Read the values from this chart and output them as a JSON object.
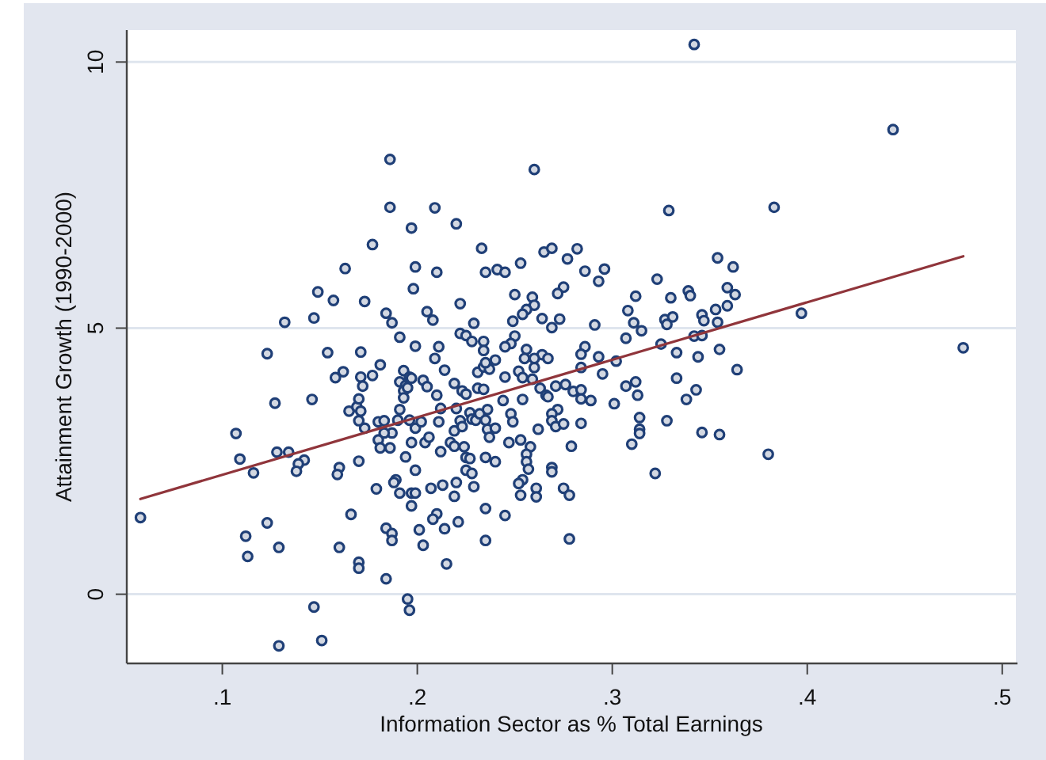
{
  "chart_data": {
    "type": "scatter",
    "xlabel": "Information Sector as % Total Earnings",
    "ylabel": "Attainment Growth (1990-2000)",
    "xlim": [
      0.051,
      0.507
    ],
    "ylim": [
      -1.3,
      10.6
    ],
    "xticks": [
      {
        "value": 0.1,
        "label": ".1"
      },
      {
        "value": 0.2,
        "label": ".2"
      },
      {
        "value": 0.3,
        "label": ".3"
      },
      {
        "value": 0.4,
        "label": ".4"
      },
      {
        "value": 0.5,
        "label": ".5"
      }
    ],
    "yticks": [
      0,
      5,
      10
    ],
    "grid": "y",
    "series": [
      {
        "color": "#1f3f77",
        "marker": "circle",
        "x": [
          0.163,
          0.149,
          0.157,
          0.132,
          0.147,
          0.123,
          0.154,
          0.162,
          0.158,
          0.127,
          0.146,
          0.165,
          0.107,
          0.109,
          0.116,
          0.128,
          0.134,
          0.142,
          0.139,
          0.138,
          0.16,
          0.159,
          0.058,
          0.123,
          0.112,
          0.113,
          0.129,
          0.166,
          0.16,
          0.147,
          0.151,
          0.129,
          0.186,
          0.26,
          0.186,
          0.209,
          0.197,
          0.22,
          0.177,
          0.233,
          0.265,
          0.199,
          0.21,
          0.235,
          0.241,
          0.245,
          0.253,
          0.198,
          0.173,
          0.222,
          0.25,
          0.259,
          0.26,
          0.256,
          0.254,
          0.184,
          0.187,
          0.205,
          0.208,
          0.229,
          0.249,
          0.264,
          0.191,
          0.199,
          0.211,
          0.222,
          0.225,
          0.228,
          0.234,
          0.234,
          0.25,
          0.248,
          0.245,
          0.256,
          0.171,
          0.209,
          0.214,
          0.171,
          0.172,
          0.181,
          0.177,
          0.193,
          0.196,
          0.191,
          0.194,
          0.193,
          0.193,
          0.195,
          0.197,
          0.203,
          0.205,
          0.219,
          0.223,
          0.225,
          0.231,
          0.234,
          0.231,
          0.234,
          0.237,
          0.235,
          0.24,
          0.245,
          0.252,
          0.254,
          0.26,
          0.259,
          0.254,
          0.244,
          0.263,
          0.266,
          0.169,
          0.17,
          0.171,
          0.17,
          0.173,
          0.18,
          0.183,
          0.187,
          0.183,
          0.18,
          0.181,
          0.186,
          0.19,
          0.191,
          0.196,
          0.199,
          0.202,
          0.197,
          0.194,
          0.204,
          0.206,
          0.211,
          0.212,
          0.21,
          0.212,
          0.217,
          0.219,
          0.22,
          0.222,
          0.223,
          0.219,
          0.224,
          0.225,
          0.227,
          0.225,
          0.228,
          0.229,
          0.227,
          0.228,
          0.23,
          0.232,
          0.236,
          0.235,
          0.236,
          0.237,
          0.24,
          0.248,
          0.249,
          0.247,
          0.253,
          0.258,
          0.256,
          0.256,
          0.257,
          0.254,
          0.252,
          0.253,
          0.261,
          0.261,
          0.262,
          0.235,
          0.24,
          0.199,
          0.189,
          0.188,
          0.191,
          0.197,
          0.199,
          0.197,
          0.179,
          0.207,
          0.213,
          0.22,
          0.219,
          0.221,
          0.21,
          0.208,
          0.214,
          0.201,
          0.203,
          0.235,
          0.235,
          0.245,
          0.184,
          0.187,
          0.187,
          0.17,
          0.17,
          0.184,
          0.215,
          0.195,
          0.196,
          0.17,
          0.255,
          0.264,
          0.329,
          0.269,
          0.282,
          0.277,
          0.286,
          0.296,
          0.293,
          0.323,
          0.354,
          0.362,
          0.275,
          0.272,
          0.312,
          0.33,
          0.339,
          0.34,
          0.359,
          0.363,
          0.273,
          0.269,
          0.308,
          0.311,
          0.315,
          0.291,
          0.327,
          0.331,
          0.328,
          0.346,
          0.347,
          0.353,
          0.354,
          0.359,
          0.342,
          0.346,
          0.325,
          0.307,
          0.286,
          0.284,
          0.284,
          0.293,
          0.295,
          0.302,
          0.333,
          0.344,
          0.355,
          0.364,
          0.267,
          0.26,
          0.267,
          0.271,
          0.276,
          0.28,
          0.284,
          0.284,
          0.289,
          0.301,
          0.307,
          0.312,
          0.313,
          0.333,
          0.343,
          0.338,
          0.272,
          0.269,
          0.269,
          0.271,
          0.275,
          0.284,
          0.279,
          0.269,
          0.269,
          0.275,
          0.278,
          0.278,
          0.314,
          0.314,
          0.314,
          0.31,
          0.328,
          0.346,
          0.355,
          0.322,
          0.444,
          0.383,
          0.397,
          0.38,
          0.48,
          0.342
        ],
        "values": [
          6.12,
          5.68,
          5.52,
          5.11,
          5.19,
          4.52,
          4.54,
          4.18,
          4.07,
          3.59,
          3.66,
          3.44,
          3.02,
          2.54,
          2.28,
          2.67,
          2.67,
          2.52,
          2.45,
          2.31,
          2.38,
          2.25,
          1.44,
          1.34,
          1.09,
          0.71,
          0.88,
          1.5,
          0.88,
          -0.24,
          -0.87,
          -0.97,
          8.17,
          7.98,
          7.27,
          7.26,
          6.88,
          6.96,
          6.57,
          6.5,
          6.43,
          6.15,
          6.05,
          6.05,
          6.1,
          6.05,
          6.22,
          5.74,
          5.5,
          5.46,
          5.63,
          5.58,
          5.43,
          5.35,
          5.26,
          5.28,
          5.1,
          5.31,
          5.15,
          5.09,
          5.13,
          5.18,
          4.83,
          4.66,
          4.65,
          4.9,
          4.86,
          4.75,
          4.75,
          4.58,
          4.85,
          4.71,
          4.65,
          4.6,
          4.55,
          4.43,
          4.21,
          4.08,
          3.91,
          4.31,
          4.11,
          4.2,
          4.08,
          3.99,
          3.92,
          3.82,
          3.69,
          3.88,
          4.06,
          4.02,
          3.9,
          3.96,
          3.82,
          3.76,
          3.87,
          3.85,
          4.17,
          4.27,
          4.23,
          4.35,
          4.4,
          4.08,
          4.19,
          4.07,
          4.26,
          4.04,
          3.66,
          3.64,
          3.87,
          3.74,
          3.52,
          3.67,
          3.44,
          3.26,
          3.12,
          3.24,
          3.26,
          3.03,
          3.03,
          2.9,
          2.75,
          2.75,
          3.27,
          3.47,
          3.27,
          3.12,
          3.24,
          2.85,
          2.58,
          2.85,
          2.95,
          3.24,
          3.49,
          3.74,
          2.68,
          2.85,
          3.07,
          3.49,
          3.26,
          3.15,
          2.78,
          2.77,
          2.57,
          2.55,
          2.33,
          2.27,
          2.02,
          3.41,
          3.29,
          3.27,
          3.39,
          3.47,
          3.27,
          3.1,
          2.95,
          3.12,
          3.39,
          3.24,
          2.85,
          2.9,
          2.77,
          2.63,
          2.49,
          2.35,
          2.15,
          2.08,
          1.86,
          1.99,
          1.83,
          3.1,
          2.57,
          2.49,
          2.33,
          2.15,
          2.1,
          1.9,
          1.9,
          1.9,
          1.66,
          1.98,
          1.99,
          2.05,
          2.1,
          1.84,
          1.36,
          1.51,
          1.41,
          1.23,
          1.21,
          0.92,
          1.61,
          1.01,
          1.48,
          1.24,
          1.14,
          1.01,
          0.6,
          0.49,
          0.29,
          0.57,
          -0.09,
          -0.3,
          2.5,
          4.43,
          4.5,
          7.21,
          6.5,
          6.49,
          6.3,
          6.07,
          6.11,
          5.88,
          5.92,
          6.32,
          6.15,
          5.77,
          5.65,
          5.6,
          5.57,
          5.7,
          5.61,
          5.76,
          5.63,
          5.17,
          5.01,
          5.33,
          5.1,
          4.95,
          5.06,
          5.16,
          5.21,
          5.07,
          5.25,
          5.14,
          5.35,
          5.11,
          5.42,
          4.85,
          4.86,
          4.7,
          4.81,
          4.65,
          4.51,
          4.26,
          4.46,
          4.14,
          4.38,
          4.54,
          4.46,
          4.6,
          4.22,
          4.43,
          4.43,
          3.71,
          3.91,
          3.94,
          3.81,
          3.84,
          3.67,
          3.64,
          3.58,
          3.91,
          3.99,
          3.74,
          4.06,
          3.84,
          3.66,
          3.47,
          3.39,
          3.26,
          3.15,
          3.2,
          3.21,
          2.78,
          2.38,
          2.3,
          1.99,
          1.86,
          1.04,
          3.32,
          3.1,
          3.02,
          2.82,
          3.26,
          3.04,
          3.0,
          2.27,
          8.73,
          7.27,
          5.28,
          2.63,
          4.63,
          10.33
        ]
      },
      {
        "type": "line",
        "color": "#90353b",
        "marker": "none",
        "x": [
          0.058,
          0.48
        ],
        "values": [
          1.79,
          6.35
        ]
      }
    ]
  }
}
